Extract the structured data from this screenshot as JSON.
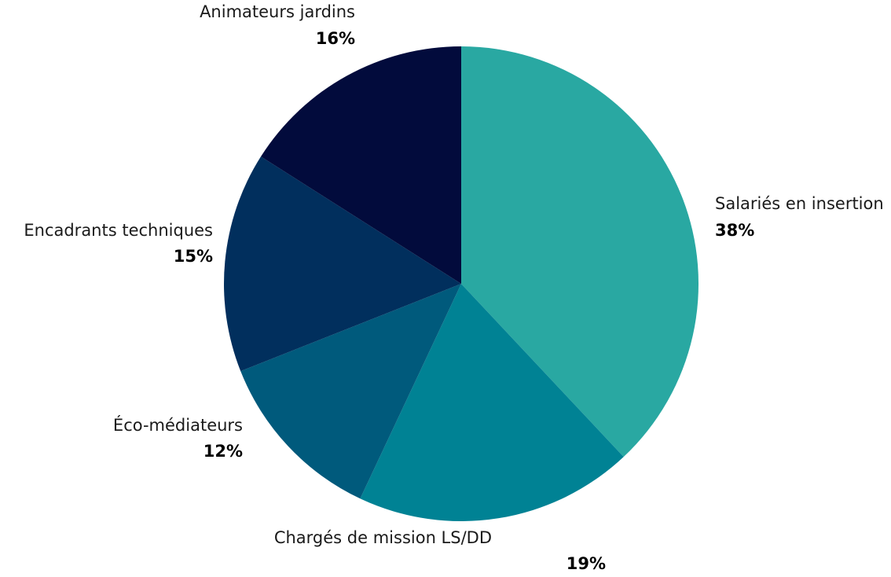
{
  "chart_data": {
    "type": "pie",
    "start_angle_deg": 0,
    "direction": "clockwise",
    "slices": [
      {
        "label": "Salariés en insertion",
        "value": 38,
        "value_label": "38%",
        "color": "#29a8a2"
      },
      {
        "label": "Chargés de mission LS/DD",
        "value": 19,
        "value_label": "19%",
        "color": "#008294"
      },
      {
        "label": "Éco-médiateurs",
        "value": 12,
        "value_label": "12%",
        "color": "#005a7c"
      },
      {
        "label": "Encadrants techniques",
        "value": 15,
        "value_label": "15%",
        "color": "#012f5d"
      },
      {
        "label": "Animateurs jardins",
        "value": 16,
        "value_label": "16%",
        "color": "#020b3c"
      }
    ]
  }
}
